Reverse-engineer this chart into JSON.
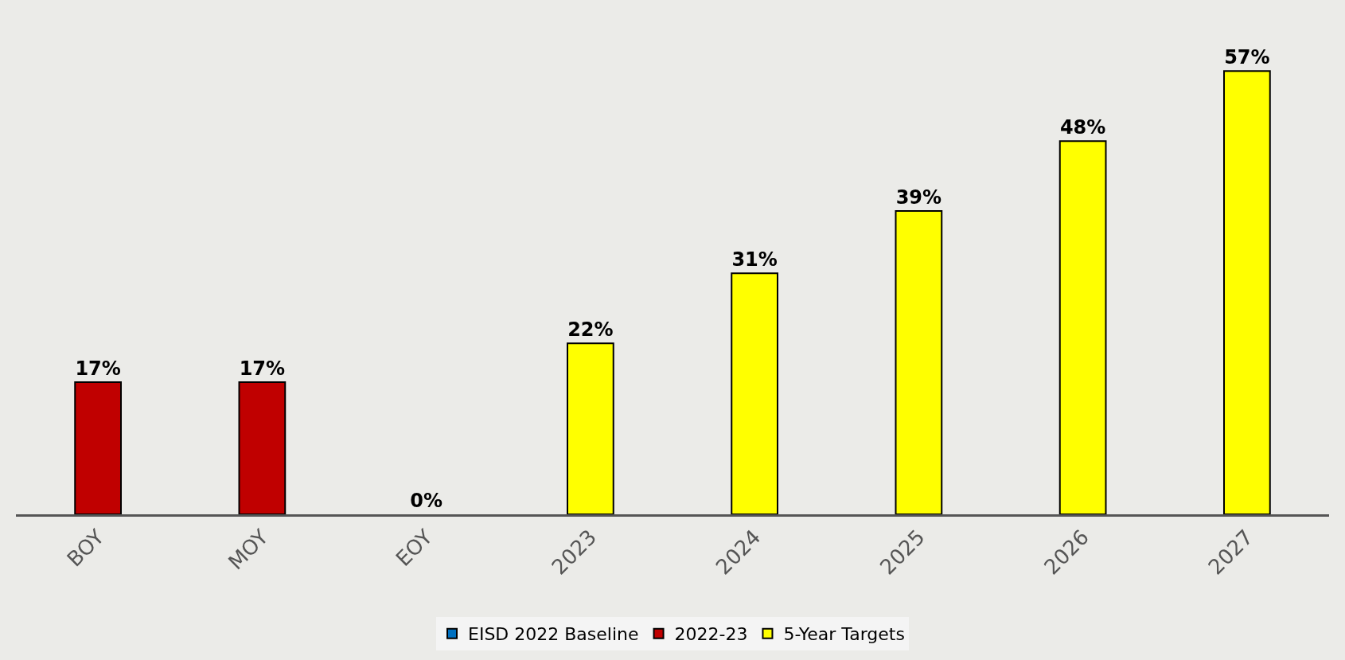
{
  "chart_data": {
    "type": "bar",
    "categories": [
      "BOY",
      "MOY",
      "EOY",
      "2023",
      "2024",
      "2025",
      "2026",
      "2027"
    ],
    "series": [
      {
        "name": "EISD 2022 Baseline",
        "color": "#0070c0",
        "values": [
          null,
          null,
          null,
          null,
          null,
          null,
          null,
          null
        ]
      },
      {
        "name": "2022-23",
        "color": "#c00000",
        "values": [
          17,
          17,
          0,
          null,
          null,
          null,
          null,
          null
        ],
        "value_labels": [
          "17%",
          "17%",
          "0%",
          null,
          null,
          null,
          null,
          null
        ]
      },
      {
        "name": "5-Year Targets",
        "color": "#ffff00",
        "values": [
          null,
          null,
          null,
          22,
          31,
          39,
          48,
          57
        ],
        "value_labels": [
          null,
          null,
          null,
          "22%",
          "31%",
          "39%",
          "48%",
          "57%"
        ]
      }
    ],
    "legend": "bottom",
    "grid": false
  }
}
